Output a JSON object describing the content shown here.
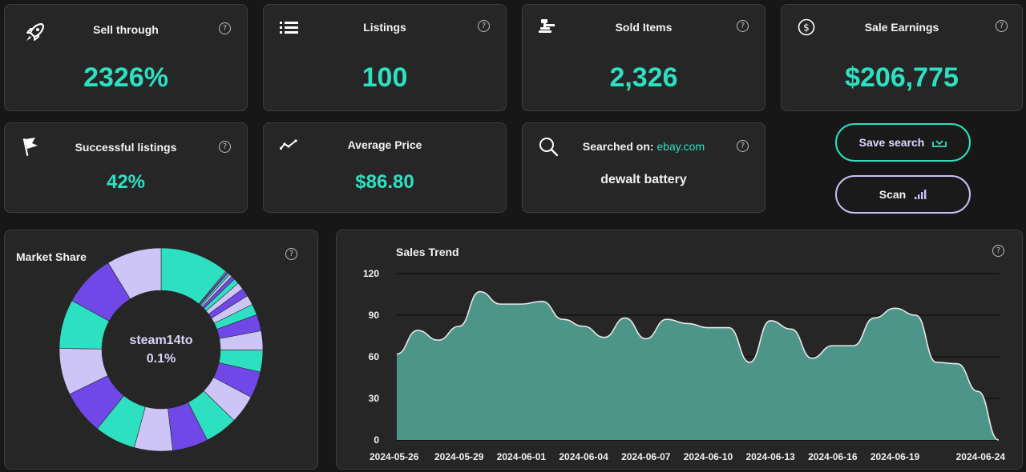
{
  "stats": {
    "sell_through": {
      "label": "Sell through",
      "value": "2326%"
    },
    "listings": {
      "label": "Listings",
      "value": "100"
    },
    "sold_items": {
      "label": "Sold Items",
      "value": "2,326"
    },
    "sale_earnings": {
      "label": "Sale Earnings",
      "value": "$206,775"
    },
    "successful_listings": {
      "label": "Successful listings",
      "value": "42%"
    },
    "average_price": {
      "label": "Average Price",
      "value": "$86.80"
    },
    "searched_on": {
      "label": "Searched on:",
      "site": "ebay.com",
      "query": "dewalt battery"
    }
  },
  "help_glyph": "?",
  "actions": {
    "save_label": "Save search",
    "scan_label": "Scan"
  },
  "market_share": {
    "title": "Market Share",
    "center_name": "steam14to",
    "center_value": "0.1%",
    "colors": [
      "#2ee0c2",
      "#7048e8",
      "#cdc5f5"
    ],
    "segments": [
      {
        "value": 12.6,
        "color": "#2ee0c2"
      },
      {
        "value": 0.2,
        "color": "#cdc5f5"
      },
      {
        "value": 0.3,
        "color": "#7048e8"
      },
      {
        "value": 0.4,
        "color": "#2ee0c2"
      },
      {
        "value": 0.5,
        "color": "#cdc5f5"
      },
      {
        "value": 0.7,
        "color": "#7048e8"
      },
      {
        "value": 1.0,
        "color": "#2ee0c2"
      },
      {
        "value": 1.3,
        "color": "#cdc5f5"
      },
      {
        "value": 1.5,
        "color": "#7048e8"
      },
      {
        "value": 1.8,
        "color": "#cdc5f5"
      },
      {
        "value": 2.0,
        "color": "#2ee0c2"
      },
      {
        "value": 3.0,
        "color": "#7048e8"
      },
      {
        "value": 3.5,
        "color": "#cdc5f5"
      },
      {
        "value": 4.0,
        "color": "#2ee0c2"
      },
      {
        "value": 4.8,
        "color": "#7048e8"
      },
      {
        "value": 5.2,
        "color": "#cdc5f5"
      },
      {
        "value": 6.0,
        "color": "#2ee0c2"
      },
      {
        "value": 6.5,
        "color": "#7048e8"
      },
      {
        "value": 7.0,
        "color": "#cdc5f5"
      },
      {
        "value": 7.5,
        "color": "#2ee0c2"
      },
      {
        "value": 8.0,
        "color": "#7048e8"
      },
      {
        "value": 8.5,
        "color": "#cdc5f5"
      },
      {
        "value": 9.0,
        "color": "#2ee0c2"
      },
      {
        "value": 9.5,
        "color": "#7048e8"
      },
      {
        "value": 10.0,
        "color": "#cdc5f5"
      }
    ]
  },
  "chart_data": {
    "type": "area",
    "title": "Sales Trend",
    "xlabel": "",
    "ylabel": "",
    "ylim": [
      0,
      120
    ],
    "yticks": [
      "0",
      "30",
      "60",
      "90",
      "120"
    ],
    "xticks": [
      "2024-05-26",
      "2024-05-29",
      "2024-06-01",
      "2024-06-04",
      "2024-06-07",
      "2024-06-10",
      "2024-06-13",
      "2024-06-16",
      "2024-06-19",
      "2024-06-24"
    ],
    "grid": true,
    "color": "#4f9e90",
    "series": [
      {
        "x": [
          "2024-05-26",
          "2024-05-27",
          "2024-05-28",
          "2024-05-29",
          "2024-05-30",
          "2024-05-31",
          "2024-06-01",
          "2024-06-02",
          "2024-06-03",
          "2024-06-04",
          "2024-06-05",
          "2024-06-06",
          "2024-06-07",
          "2024-06-08",
          "2024-06-09",
          "2024-06-10",
          "2024-06-11",
          "2024-06-12",
          "2024-06-13",
          "2024-06-14",
          "2024-06-15",
          "2024-06-16",
          "2024-06-17",
          "2024-06-18",
          "2024-06-19",
          "2024-06-20",
          "2024-06-21",
          "2024-06-22",
          "2024-06-23",
          "2024-06-24"
        ],
        "values": [
          62,
          79,
          72,
          82,
          107,
          98,
          98,
          100,
          87,
          82,
          74,
          88,
          73,
          87,
          84,
          81,
          81,
          56,
          86,
          80,
          59,
          68,
          68,
          88,
          95,
          90,
          56,
          55,
          35,
          0
        ]
      }
    ]
  }
}
